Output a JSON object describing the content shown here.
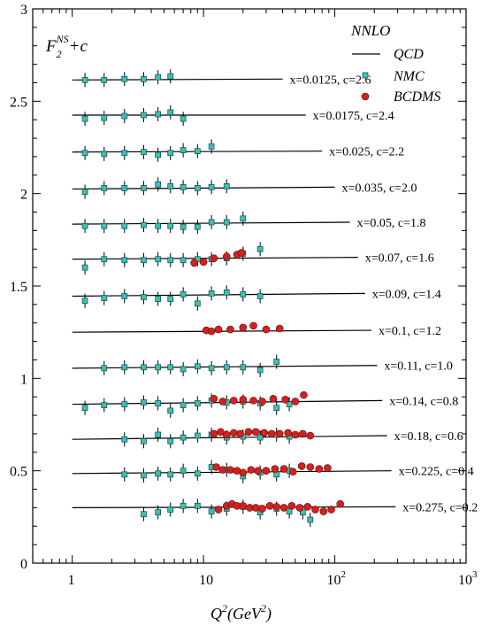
{
  "chart_data": {
    "type": "scatter",
    "x_scale": "log",
    "xlim": [
      0.5,
      1000
    ],
    "ylim": [
      0,
      3
    ],
    "x_ticks": [
      {
        "value": 1,
        "label": "1"
      },
      {
        "value": 10,
        "label": "10"
      },
      {
        "value": 100,
        "label": "10",
        "sup": "2"
      },
      {
        "value": 1000,
        "label": "10",
        "sup": "3"
      }
    ],
    "y_ticks": [
      {
        "value": 0,
        "label": "0"
      },
      {
        "value": 0.5,
        "label": "0.5"
      },
      {
        "value": 1,
        "label": "1"
      },
      {
        "value": 1.5,
        "label": "1.5"
      },
      {
        "value": 2,
        "label": "2"
      },
      {
        "value": 2.5,
        "label": "2.5"
      },
      {
        "value": 3,
        "label": "3"
      }
    ],
    "xlabel": {
      "base": "Q",
      "sup": "2",
      "rest": "(GeV",
      "sup2": "2",
      "close": ")"
    },
    "ylabel": {
      "base": "F",
      "sub": "2",
      "sup": "NS",
      "rest": "+c"
    },
    "legend": {
      "position": "top-right",
      "title": "NNLO",
      "entries": [
        {
          "label": "QCD",
          "marker": "line"
        },
        {
          "label": "NMC",
          "marker": "square",
          "color": "#3cbfb4"
        },
        {
          "label": "BCDMS",
          "marker": "circle",
          "color": "#d42020"
        }
      ]
    },
    "colors": {
      "nmc": "#3cbfb4",
      "bcdms": "#d42020",
      "curve": "#000000"
    },
    "bins": [
      {
        "label": "x=0.0125, c=2.6",
        "offset": 2.6,
        "qcd": [
          [
            1.0,
            2.615
          ],
          [
            40,
            2.62
          ]
        ],
        "nmc": [
          [
            1.25,
            2.615
          ],
          [
            1.75,
            2.615
          ],
          [
            2.5,
            2.62
          ],
          [
            3.5,
            2.62
          ],
          [
            4.5,
            2.63
          ],
          [
            5.6,
            2.635
          ]
        ],
        "bcdms": []
      },
      {
        "label": "x=0.0175, c=2.4",
        "offset": 2.4,
        "qcd": [
          [
            1.0,
            2.425
          ],
          [
            60,
            2.425
          ]
        ],
        "nmc": [
          [
            1.25,
            2.405
          ],
          [
            1.75,
            2.41
          ],
          [
            2.5,
            2.42
          ],
          [
            3.5,
            2.425
          ],
          [
            4.5,
            2.43
          ],
          [
            5.6,
            2.44
          ],
          [
            7.0,
            2.405
          ]
        ],
        "bcdms": []
      },
      {
        "label": "x=0.025, c=2.2",
        "offset": 2.2,
        "qcd": [
          [
            1.0,
            2.225
          ],
          [
            80,
            2.23
          ]
        ],
        "nmc": [
          [
            1.25,
            2.22
          ],
          [
            1.75,
            2.215
          ],
          [
            2.5,
            2.22
          ],
          [
            3.5,
            2.225
          ],
          [
            4.5,
            2.21
          ],
          [
            5.6,
            2.22
          ],
          [
            7.0,
            2.235
          ],
          [
            9.0,
            2.23
          ],
          [
            11.5,
            2.255
          ]
        ],
        "bcdms": []
      },
      {
        "label": "x=0.035, c=2.0",
        "offset": 2.0,
        "qcd": [
          [
            1.0,
            2.025
          ],
          [
            100,
            2.035
          ]
        ],
        "nmc": [
          [
            1.25,
            2.01
          ],
          [
            1.75,
            2.03
          ],
          [
            2.5,
            2.03
          ],
          [
            3.5,
            2.03
          ],
          [
            4.5,
            2.05
          ],
          [
            5.6,
            2.04
          ],
          [
            7.0,
            2.035
          ],
          [
            9.0,
            2.03
          ],
          [
            11.5,
            2.035
          ],
          [
            15.0,
            2.04
          ]
        ],
        "bcdms": []
      },
      {
        "label": "x=0.05, c=1.8",
        "offset": 1.8,
        "qcd": [
          [
            1.0,
            1.835
          ],
          [
            130,
            1.845
          ]
        ],
        "nmc": [
          [
            1.25,
            1.825
          ],
          [
            1.75,
            1.825
          ],
          [
            2.5,
            1.825
          ],
          [
            3.5,
            1.83
          ],
          [
            4.5,
            1.825
          ],
          [
            5.6,
            1.825
          ],
          [
            7.0,
            1.82
          ],
          [
            9.0,
            1.82
          ],
          [
            11.5,
            1.845
          ],
          [
            15.0,
            1.845
          ],
          [
            20.0,
            1.865
          ]
        ],
        "bcdms": []
      },
      {
        "label": "x=0.07, c=1.6",
        "offset": 1.6,
        "qcd": [
          [
            1.0,
            1.645
          ],
          [
            150,
            1.655
          ]
        ],
        "nmc": [
          [
            1.25,
            1.6
          ],
          [
            1.75,
            1.645
          ],
          [
            2.5,
            1.64
          ],
          [
            3.5,
            1.64
          ],
          [
            4.5,
            1.645
          ],
          [
            5.6,
            1.64
          ],
          [
            7.0,
            1.64
          ],
          [
            9.0,
            1.645
          ],
          [
            11.5,
            1.645
          ],
          [
            15.0,
            1.65
          ],
          [
            20.0,
            1.675
          ],
          [
            27.0,
            1.7
          ]
        ],
        "bcdms": [
          [
            8.5,
            1.625
          ],
          [
            10.0,
            1.63
          ],
          [
            12.0,
            1.65
          ],
          [
            15.0,
            1.66
          ],
          [
            18.0,
            1.67
          ],
          [
            19.5,
            1.68
          ]
        ]
      },
      {
        "label": "x=0.09, c=1.4",
        "offset": 1.4,
        "qcd": [
          [
            1.0,
            1.445
          ],
          [
            170,
            1.46
          ]
        ],
        "nmc": [
          [
            1.25,
            1.42
          ],
          [
            1.75,
            1.435
          ],
          [
            2.5,
            1.445
          ],
          [
            3.5,
            1.44
          ],
          [
            4.5,
            1.43
          ],
          [
            5.6,
            1.43
          ],
          [
            7.0,
            1.455
          ],
          [
            9.0,
            1.405
          ],
          [
            11.5,
            1.46
          ],
          [
            15.0,
            1.465
          ],
          [
            20.0,
            1.455
          ],
          [
            27.0,
            1.445
          ]
        ],
        "bcdms": []
      },
      {
        "label": "x=0.1, c=1.2",
        "offset": 1.2,
        "qcd": [
          [
            1.0,
            1.25
          ],
          [
            190,
            1.26
          ]
        ],
        "nmc": [],
        "bcdms": [
          [
            10.5,
            1.26
          ],
          [
            11.5,
            1.255
          ],
          [
            13.0,
            1.265
          ],
          [
            16.0,
            1.265
          ],
          [
            20.0,
            1.275
          ],
          [
            24.0,
            1.285
          ],
          [
            30.0,
            1.265
          ],
          [
            38.0,
            1.27
          ]
        ]
      },
      {
        "label": "x=0.11, c=1.0",
        "offset": 1.0,
        "qcd": [
          [
            1.0,
            1.055
          ],
          [
            210,
            1.07
          ]
        ],
        "nmc": [
          [
            1.75,
            1.055
          ],
          [
            2.5,
            1.06
          ],
          [
            3.5,
            1.06
          ],
          [
            4.5,
            1.06
          ],
          [
            5.6,
            1.06
          ],
          [
            7.0,
            1.05
          ],
          [
            9.0,
            1.065
          ],
          [
            11.5,
            1.055
          ],
          [
            15.0,
            1.06
          ],
          [
            20.0,
            1.06
          ],
          [
            27.0,
            1.045
          ],
          [
            36.0,
            1.09
          ]
        ],
        "bcdms": []
      },
      {
        "label": "x=0.14, c=0.8",
        "offset": 0.8,
        "qcd": [
          [
            1.0,
            0.86
          ],
          [
            230,
            0.88
          ]
        ],
        "nmc": [
          [
            1.25,
            0.84
          ],
          [
            1.75,
            0.855
          ],
          [
            2.5,
            0.86
          ],
          [
            3.5,
            0.87
          ],
          [
            4.5,
            0.865
          ],
          [
            5.6,
            0.825
          ],
          [
            7.0,
            0.855
          ],
          [
            9.0,
            0.865
          ],
          [
            11.5,
            0.88
          ],
          [
            15.0,
            0.87
          ],
          [
            20.0,
            0.875
          ],
          [
            27.0,
            0.865
          ],
          [
            36.0,
            0.84
          ],
          [
            45.0,
            0.86
          ]
        ],
        "bcdms": [
          [
            12.0,
            0.89
          ],
          [
            14.0,
            0.875
          ],
          [
            17.0,
            0.88
          ],
          [
            20.0,
            0.885
          ],
          [
            24.0,
            0.88
          ],
          [
            28.0,
            0.875
          ],
          [
            34.0,
            0.89
          ],
          [
            42.0,
            0.885
          ],
          [
            50.0,
            0.875
          ],
          [
            58.0,
            0.91
          ]
        ]
      },
      {
        "label": "x=0.18, c=0.6",
        "offset": 0.6,
        "qcd": [
          [
            1.0,
            0.67
          ],
          [
            250,
            0.69
          ]
        ],
        "nmc": [
          [
            2.5,
            0.67
          ],
          [
            3.5,
            0.66
          ],
          [
            4.5,
            0.695
          ],
          [
            5.6,
            0.66
          ],
          [
            7.0,
            0.68
          ],
          [
            9.0,
            0.69
          ],
          [
            11.5,
            0.695
          ],
          [
            15.0,
            0.68
          ],
          [
            20.0,
            0.685
          ],
          [
            27.0,
            0.68
          ],
          [
            36.0,
            0.695
          ],
          [
            45.0,
            0.685
          ]
        ],
        "bcdms": [
          [
            12.0,
            0.7
          ],
          [
            13.5,
            0.71
          ],
          [
            15.0,
            0.695
          ],
          [
            17.0,
            0.705
          ],
          [
            19.0,
            0.7
          ],
          [
            22.0,
            0.71
          ],
          [
            25.0,
            0.71
          ],
          [
            29.0,
            0.705
          ],
          [
            33.0,
            0.7
          ],
          [
            38.0,
            0.7
          ],
          [
            44.0,
            0.705
          ],
          [
            50.0,
            0.695
          ],
          [
            57.0,
            0.7
          ],
          [
            65.0,
            0.69
          ]
        ]
      },
      {
        "label": "x=0.225, c=0.4",
        "offset": 0.4,
        "qcd": [
          [
            1.0,
            0.485
          ],
          [
            270,
            0.5
          ]
        ],
        "nmc": [
          [
            2.5,
            0.48
          ],
          [
            3.5,
            0.475
          ],
          [
            4.5,
            0.485
          ],
          [
            5.6,
            0.48
          ],
          [
            7.0,
            0.5
          ],
          [
            9.0,
            0.485
          ],
          [
            11.5,
            0.52
          ],
          [
            15.0,
            0.505
          ],
          [
            20.0,
            0.47
          ],
          [
            27.0,
            0.49
          ],
          [
            36.0,
            0.48
          ],
          [
            45.0,
            0.5
          ]
        ],
        "bcdms": [
          [
            12.5,
            0.52
          ],
          [
            14.0,
            0.505
          ],
          [
            16.0,
            0.505
          ],
          [
            18.0,
            0.5
          ],
          [
            20.0,
            0.49
          ],
          [
            23.0,
            0.505
          ],
          [
            26.0,
            0.5
          ],
          [
            30.0,
            0.5
          ],
          [
            35.0,
            0.51
          ],
          [
            41.0,
            0.51
          ],
          [
            48.0,
            0.495
          ],
          [
            56.0,
            0.525
          ],
          [
            65.0,
            0.52
          ],
          [
            76.0,
            0.51
          ],
          [
            88.0,
            0.515
          ]
        ]
      },
      {
        "label": "x=0.275, c=0.2",
        "offset": 0.2,
        "qcd": [
          [
            1.0,
            0.3
          ],
          [
            290,
            0.305
          ]
        ],
        "nmc": [
          [
            3.5,
            0.265
          ],
          [
            4.5,
            0.275
          ],
          [
            5.6,
            0.29
          ],
          [
            7.0,
            0.31
          ],
          [
            9.0,
            0.31
          ],
          [
            11.5,
            0.28
          ],
          [
            15.0,
            0.295
          ],
          [
            20.0,
            0.305
          ],
          [
            27.0,
            0.275
          ],
          [
            36.0,
            0.295
          ],
          [
            45.0,
            0.28
          ],
          [
            57.0,
            0.275
          ],
          [
            65.0,
            0.235
          ]
        ],
        "bcdms": [
          [
            13.0,
            0.29
          ],
          [
            15.0,
            0.31
          ],
          [
            16.5,
            0.32
          ],
          [
            18.0,
            0.31
          ],
          [
            20.0,
            0.31
          ],
          [
            22.5,
            0.3
          ],
          [
            25.0,
            0.3
          ],
          [
            28.0,
            0.295
          ],
          [
            32.0,
            0.31
          ],
          [
            36.0,
            0.305
          ],
          [
            41.0,
            0.3
          ],
          [
            47.0,
            0.31
          ],
          [
            54.0,
            0.3
          ],
          [
            62.0,
            0.305
          ],
          [
            71.0,
            0.29
          ],
          [
            82.0,
            0.28
          ],
          [
            94.0,
            0.29
          ],
          [
            110.0,
            0.32
          ]
        ]
      }
    ]
  }
}
